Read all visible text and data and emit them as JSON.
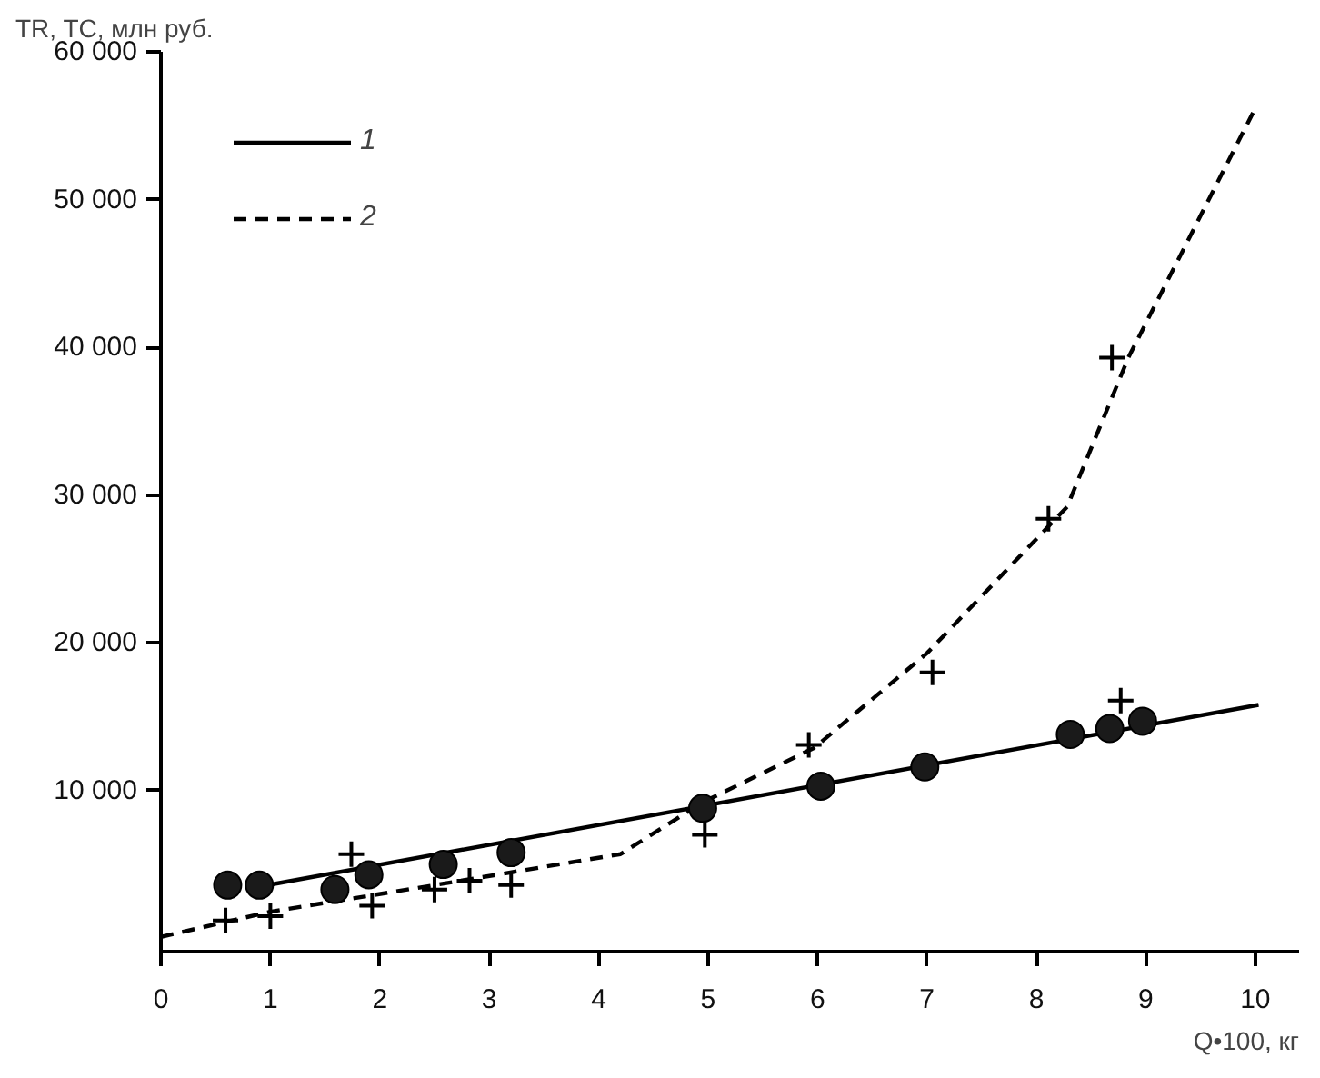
{
  "chart_data": {
    "type": "line",
    "xlabel": "Q•100, кг",
    "ylabel": "TR, TC, млн руб.",
    "xlim": [
      0,
      10.4
    ],
    "ylim": [
      -900,
      60000
    ],
    "xticks": [
      0,
      1,
      2,
      3,
      4,
      5,
      6,
      7,
      8,
      9,
      10
    ],
    "yticks": [
      {
        "value": 10000,
        "label": "10 000"
      },
      {
        "value": 20000,
        "label": "20 000"
      },
      {
        "value": 30000,
        "label": "30 000"
      },
      {
        "value": 40000,
        "label": "40 000"
      },
      {
        "value": 50000,
        "label": "50 000"
      },
      {
        "value": 60000,
        "label": "60 000"
      }
    ],
    "grid": false,
    "legend": "top left",
    "series": [
      {
        "name": "1",
        "color": "#000000",
        "line_style": "solid",
        "x": [
          0.9,
          10.03
        ],
        "values": [
          3500,
          15800
        ]
      },
      {
        "name": "2",
        "color": "#000000",
        "line_style": "dashed",
        "x": [
          0,
          1.0,
          2.5,
          4.2,
          4.95,
          5.97,
          7.0,
          8.28,
          8.84,
          9.98
        ],
        "values": [
          100,
          1800,
          3600,
          5700,
          9200,
          12900,
          19300,
          29200,
          39300,
          55900
        ]
      },
      {
        "type": "scatter",
        "marker": "circle",
        "color": "#1a1a1a",
        "x": [
          0.61,
          0.9,
          1.59,
          1.9,
          2.58,
          3.2,
          4.95,
          6.03,
          6.98,
          8.31,
          8.67,
          8.97
        ],
        "values": [
          3600,
          3600,
          3300,
          4300,
          5000,
          5800,
          8800,
          10300,
          11600,
          13800,
          14200,
          14700
        ]
      },
      {
        "type": "scatter",
        "marker": "cross",
        "color": "#000000",
        "x": [
          0.59,
          1.0,
          1.74,
          1.93,
          2.5,
          2.82,
          3.2,
          4.97,
          5.92,
          7.05,
          8.11,
          8.69,
          8.77
        ],
        "values": [
          1200,
          1500,
          5700,
          2200,
          3300,
          3900,
          3600,
          7000,
          13100,
          18000,
          28400,
          39300,
          16100
        ]
      }
    ]
  }
}
